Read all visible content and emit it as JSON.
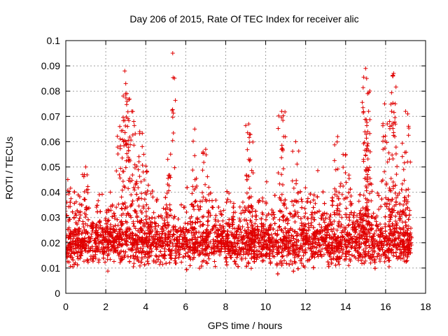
{
  "chart_data": {
    "type": "scatter",
    "title": "Day 206 of 2015, Rate Of TEC Index for receiver alic",
    "xlabel": "GPS time / hours",
    "ylabel": "ROTI / TECUs",
    "xlim": [
      0,
      18
    ],
    "ylim": [
      0,
      0.1
    ],
    "xticks": [
      0,
      2,
      4,
      6,
      8,
      10,
      12,
      14,
      16,
      18
    ],
    "yticks": [
      0,
      0.01,
      0.02,
      0.03,
      0.04,
      0.05,
      0.06,
      0.07,
      0.08,
      0.09,
      0.1
    ],
    "xtick_labels": [
      "0",
      "2",
      "4",
      "6",
      "8",
      "10",
      "12",
      "14",
      "16",
      "18"
    ],
    "ytick_labels": [
      "0",
      "0.01",
      "0.02",
      "0.03",
      "0.04",
      "0.05",
      "0.06",
      "0.07",
      "0.08",
      "0.09",
      "0.1"
    ],
    "grid": true,
    "marker": "+",
    "marker_color": "#e00000",
    "x_data_range": [
      0,
      17.3
    ],
    "baseline_band": [
      0.01,
      0.03
    ],
    "notable_points": [
      {
        "x": 0.1,
        "y": 0.045
      },
      {
        "x": 1.0,
        "y": 0.05
      },
      {
        "x": 2.7,
        "y": 0.066
      },
      {
        "x": 2.95,
        "y": 0.088
      },
      {
        "x": 3.0,
        "y": 0.083
      },
      {
        "x": 3.05,
        "y": 0.079
      },
      {
        "x": 3.3,
        "y": 0.072
      },
      {
        "x": 3.4,
        "y": 0.068
      },
      {
        "x": 3.7,
        "y": 0.064
      },
      {
        "x": 3.9,
        "y": 0.055
      },
      {
        "x": 5.1,
        "y": 0.053
      },
      {
        "x": 5.35,
        "y": 0.095
      },
      {
        "x": 6.45,
        "y": 0.065
      },
      {
        "x": 7.0,
        "y": 0.057
      },
      {
        "x": 9.15,
        "y": 0.067
      },
      {
        "x": 9.2,
        "y": 0.063
      },
      {
        "x": 10.8,
        "y": 0.072
      },
      {
        "x": 10.9,
        "y": 0.062
      },
      {
        "x": 11.5,
        "y": 0.06
      },
      {
        "x": 13.6,
        "y": 0.062
      },
      {
        "x": 14.0,
        "y": 0.055
      },
      {
        "x": 15.0,
        "y": 0.089
      },
      {
        "x": 15.05,
        "y": 0.085
      },
      {
        "x": 15.1,
        "y": 0.079
      },
      {
        "x": 15.15,
        "y": 0.072
      },
      {
        "x": 15.1,
        "y": 0.064
      },
      {
        "x": 15.95,
        "y": 0.075
      },
      {
        "x": 16.35,
        "y": 0.086
      },
      {
        "x": 16.4,
        "y": 0.087
      },
      {
        "x": 16.3,
        "y": 0.072
      },
      {
        "x": 16.2,
        "y": 0.068
      },
      {
        "x": 17.0,
        "y": 0.072
      },
      {
        "x": 17.1,
        "y": 0.052
      }
    ]
  }
}
